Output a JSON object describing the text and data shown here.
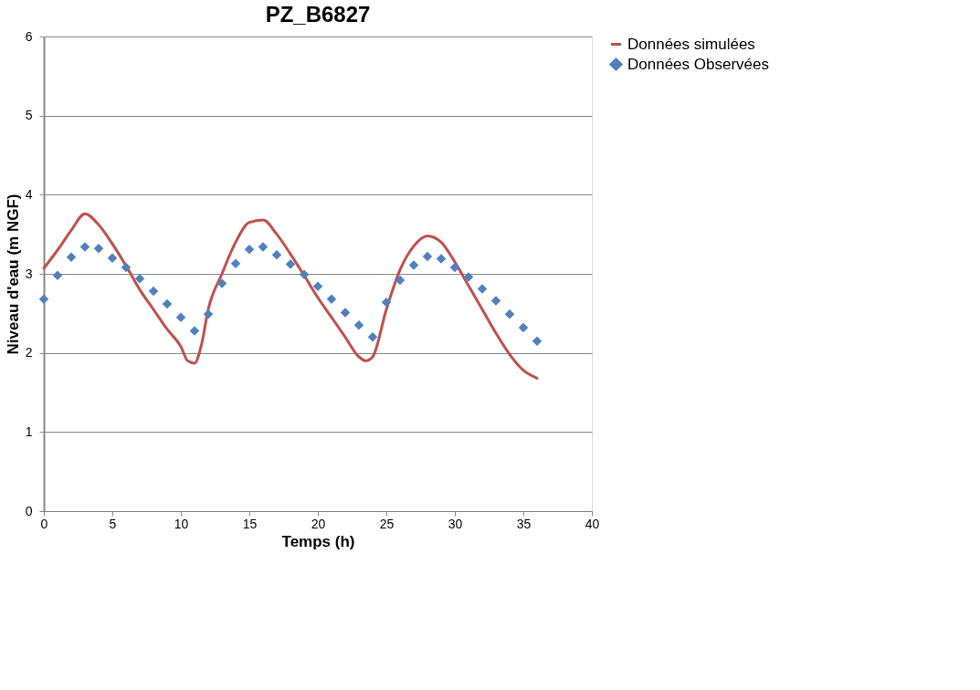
{
  "chart_data": {
    "type": "line",
    "title": "PZ_B6827",
    "xlabel": "Temps (h)",
    "ylabel": "Niveau d'eau (m NGF)",
    "xlim": [
      0,
      40
    ],
    "xticks": [
      0,
      5,
      10,
      15,
      20,
      25,
      30,
      35,
      40
    ],
    "ylim": [
      0,
      6
    ],
    "yticks": [
      0,
      1,
      2,
      3,
      4,
      5,
      6
    ],
    "grid": "y",
    "legend": "right",
    "x": [
      0,
      1,
      2,
      3,
      4,
      5,
      6,
      7,
      8,
      9,
      10,
      11,
      12,
      13,
      14,
      15,
      16,
      17,
      18,
      19,
      20,
      21,
      22,
      23,
      24,
      25,
      26,
      27,
      28,
      29,
      30,
      31,
      32,
      33,
      34,
      35,
      36
    ],
    "series": [
      {
        "name": "Données simulées",
        "type": "line",
        "color": "#c0504d",
        "line_style": "solid",
        "marker": "none",
        "x": [
          0,
          1,
          2,
          3,
          4,
          5,
          6,
          7,
          8,
          9,
          10,
          10.5,
          11,
          11.5,
          12,
          13,
          14,
          15,
          16,
          17,
          18,
          19,
          20,
          21,
          22,
          23,
          23.5,
          24,
          25,
          26,
          27,
          28,
          29,
          30,
          31,
          32,
          33,
          34,
          35,
          36
        ],
        "values": [
          3.07,
          3.3,
          3.55,
          3.76,
          3.62,
          3.38,
          3.1,
          2.8,
          2.55,
          2.3,
          2.08,
          1.9,
          1.87,
          2.1,
          2.55,
          3.0,
          3.4,
          3.65,
          3.68,
          3.5,
          3.25,
          2.98,
          2.7,
          2.45,
          2.2,
          1.95,
          1.9,
          1.95,
          2.55,
          3.05,
          3.35,
          3.48,
          3.4,
          3.15,
          2.85,
          2.55,
          2.25,
          1.98,
          1.78,
          1.68
        ]
      },
      {
        "name": "Données Observées",
        "type": "scatter",
        "color": "#4f81bd",
        "marker": "diamond",
        "values": [
          2.68,
          2.98,
          3.21,
          3.34,
          3.32,
          3.2,
          3.08,
          2.94,
          2.78,
          2.62,
          2.45,
          2.28,
          2.49,
          2.88,
          3.13,
          3.31,
          3.34,
          3.24,
          3.12,
          2.99,
          2.84,
          2.68,
          2.51,
          2.35,
          2.2,
          2.64,
          2.92,
          3.11,
          3.22,
          3.19,
          3.08,
          2.96,
          2.81,
          2.66,
          2.49,
          2.32,
          2.15
        ]
      }
    ]
  }
}
